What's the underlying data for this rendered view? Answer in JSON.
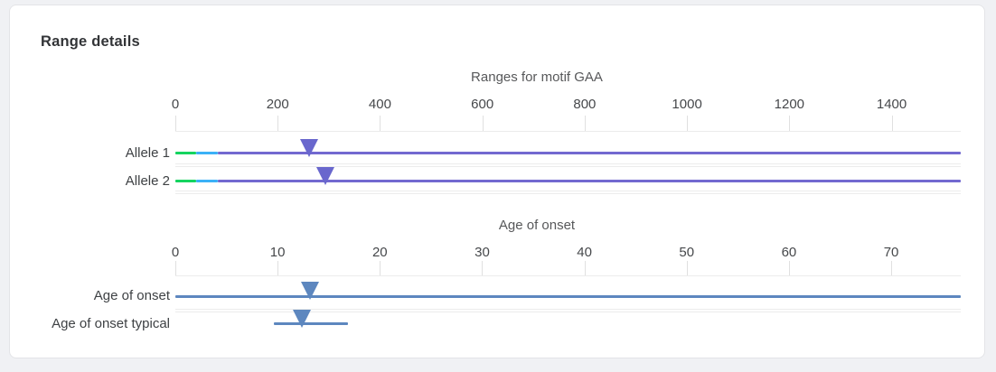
{
  "page": {
    "title": "Range details"
  },
  "colors": {
    "page_background": "#f0f1f4",
    "card_background": "#ffffff",
    "card_border": "#e3e4e7",
    "grid_line": "#ececec",
    "tick_mark": "#e0e0e0",
    "heading_text": "#323437",
    "chart_title_text": "#57585a",
    "axis_text": "#46484b",
    "row_label_text": "#3e4144",
    "motif_normal_green": "#15d45f",
    "motif_intermediate_blue": "#3bb1f7",
    "motif_expanded_purple": "#7269d0",
    "motif_marker_indigo": "#6967cd",
    "onset_blue": "#5d87bf"
  },
  "chart_data": [
    {
      "type": "range",
      "title": "Ranges for motif GAA",
      "x_ticks": [
        "0",
        "200",
        "400",
        "600",
        "800",
        "1000",
        "1200",
        "1400"
      ],
      "xlim": [
        0,
        1535
      ],
      "legend": "none",
      "grid": true,
      "rows": [
        {
          "label": "Allele 1",
          "segments": [
            {
              "from": 0,
              "to": 40,
              "color": "#15d45f"
            },
            {
              "from": 40,
              "to": 83,
              "color": "#3bb1f7"
            },
            {
              "from": 83,
              "to": 1535,
              "color": "#7269d0"
            }
          ],
          "marker": {
            "value": 262,
            "shape": "triangle-down",
            "color": "#6967cd"
          }
        },
        {
          "label": "Allele 2",
          "segments": [
            {
              "from": 0,
              "to": 40,
              "color": "#15d45f"
            },
            {
              "from": 40,
              "to": 83,
              "color": "#3bb1f7"
            },
            {
              "from": 83,
              "to": 1535,
              "color": "#7269d0"
            }
          ],
          "marker": {
            "value": 294,
            "shape": "triangle-down",
            "color": "#6967cd"
          }
        }
      ]
    },
    {
      "type": "range",
      "title": "Age of onset",
      "x_ticks": [
        "0",
        "10",
        "20",
        "30",
        "40",
        "50",
        "60",
        "70"
      ],
      "xlim": [
        0,
        76.8
      ],
      "legend": "none",
      "grid": true,
      "rows": [
        {
          "label": "Age of onset",
          "segments": [
            {
              "from": 0,
              "to": 76.8,
              "color": "#5d87bf"
            }
          ],
          "marker": {
            "value": 13.2,
            "shape": "triangle-down",
            "color": "#5d87bf"
          }
        },
        {
          "label": "Age of onset typical",
          "segments": [
            {
              "from": 9.6,
              "to": 16.9,
              "color": "#5d87bf"
            }
          ],
          "marker": {
            "value": 12.4,
            "shape": "triangle-down",
            "color": "#5d87bf"
          }
        }
      ]
    }
  ]
}
